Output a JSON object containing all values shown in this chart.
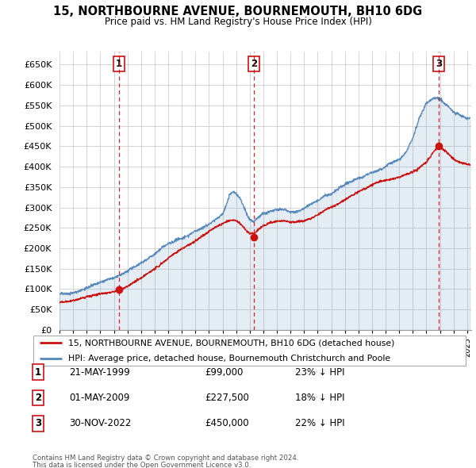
{
  "title": "15, NORTHBOURNE AVENUE, BOURNEMOUTH, BH10 6DG",
  "subtitle": "Price paid vs. HM Land Registry's House Price Index (HPI)",
  "ylim": [
    0,
    682000
  ],
  "yticks": [
    0,
    50000,
    100000,
    150000,
    200000,
    250000,
    300000,
    350000,
    400000,
    450000,
    500000,
    550000,
    600000,
    650000
  ],
  "xlim_start": 1995.0,
  "xlim_end": 2025.3,
  "transactions": [
    {
      "num": 1,
      "year": 1999.38,
      "price": 99000
    },
    {
      "num": 2,
      "year": 2009.33,
      "price": 227500
    },
    {
      "num": 3,
      "year": 2022.92,
      "price": 450000
    }
  ],
  "hpi_color": "#5588bb",
  "hpi_fill_alpha": 0.15,
  "price_color": "#cc1111",
  "dashed_color": "#cc1111",
  "legend_label_price": "15, NORTHBOURNE AVENUE, BOURNEMOUTH, BH10 6DG (detached house)",
  "legend_label_hpi": "HPI: Average price, detached house, Bournemouth Christchurch and Poole",
  "footer1": "Contains HM Land Registry data © Crown copyright and database right 2024.",
  "footer2": "This data is licensed under the Open Government Licence v3.0.",
  "table_rows": [
    {
      "num": 1,
      "date": "21-MAY-1999",
      "price": "£99,000",
      "pct": "23% ↓ HPI"
    },
    {
      "num": 2,
      "date": "01-MAY-2009",
      "price": "£227,500",
      "pct": "18% ↓ HPI"
    },
    {
      "num": 3,
      "date": "30-NOV-2022",
      "price": "£450,000",
      "pct": "22% ↓ HPI"
    }
  ],
  "hpi_anchors_x": [
    1995,
    1995.5,
    1996,
    1996.5,
    1997,
    1997.5,
    1998,
    1998.5,
    1999,
    1999.5,
    2000,
    2000.5,
    2001,
    2001.5,
    2002,
    2002.5,
    2003,
    2003.5,
    2004,
    2004.5,
    2005,
    2005.5,
    2006,
    2006.5,
    2007,
    2007.2,
    2007.5,
    2007.8,
    2008,
    2008.3,
    2008.5,
    2008.8,
    2009,
    2009.3,
    2009.5,
    2009.8,
    2010,
    2010.5,
    2011,
    2011.5,
    2012,
    2012.5,
    2013,
    2013.5,
    2014,
    2014.5,
    2015,
    2015.5,
    2016,
    2016.5,
    2017,
    2017.5,
    2018,
    2018.3,
    2018.5,
    2018.8,
    2019,
    2019.5,
    2020,
    2020.5,
    2021,
    2021.5,
    2022,
    2022.5,
    2022.8,
    2023,
    2023.5,
    2024,
    2024.5,
    2025
  ],
  "hpi_anchors_y": [
    88000,
    90000,
    95000,
    100000,
    108000,
    115000,
    122000,
    128000,
    132000,
    138000,
    148000,
    160000,
    170000,
    178000,
    190000,
    205000,
    215000,
    222000,
    228000,
    238000,
    248000,
    258000,
    270000,
    282000,
    295000,
    310000,
    340000,
    348000,
    345000,
    332000,
    318000,
    295000,
    282000,
    278000,
    285000,
    295000,
    300000,
    305000,
    308000,
    308000,
    302000,
    302000,
    308000,
    315000,
    325000,
    335000,
    342000,
    352000,
    362000,
    370000,
    378000,
    382000,
    388000,
    392000,
    395000,
    398000,
    405000,
    415000,
    420000,
    440000,
    475000,
    525000,
    560000,
    575000,
    578000,
    572000,
    555000,
    538000,
    528000,
    520000
  ],
  "price_anchors_x": [
    1995,
    1995.5,
    1996,
    1996.5,
    1997,
    1997.5,
    1998,
    1998.5,
    1999,
    1999.38,
    1999.5,
    2000,
    2000.5,
    2001,
    2001.5,
    2002,
    2002.3,
    2002.5,
    2002.8,
    2003,
    2003.5,
    2004,
    2004.5,
    2005,
    2005.3,
    2005.5,
    2005.8,
    2006,
    2006.5,
    2007,
    2007.3,
    2007.5,
    2007.8,
    2008,
    2008.3,
    2008.5,
    2008.8,
    2009,
    2009.33,
    2009.5,
    2010,
    2010.3,
    2010.5,
    2010.8,
    2011,
    2011.3,
    2011.5,
    2011.8,
    2012,
    2012.5,
    2013,
    2013.5,
    2014,
    2014.5,
    2015,
    2015.5,
    2016,
    2016.5,
    2017,
    2017.5,
    2018,
    2018.3,
    2018.5,
    2019,
    2019.5,
    2020,
    2020.5,
    2021,
    2021.3,
    2021.5,
    2022,
    2022.5,
    2022.92,
    2023,
    2023.5,
    2024,
    2024.5,
    2025
  ],
  "price_anchors_y": [
    68000,
    70000,
    74000,
    78000,
    82000,
    86000,
    90000,
    94000,
    97000,
    99000,
    101000,
    108000,
    118000,
    128000,
    138000,
    148000,
    155000,
    162000,
    168000,
    175000,
    185000,
    195000,
    205000,
    215000,
    222000,
    228000,
    232000,
    238000,
    248000,
    255000,
    260000,
    262000,
    264000,
    262000,
    255000,
    248000,
    235000,
    228000,
    227500,
    232000,
    248000,
    252000,
    255000,
    258000,
    260000,
    262000,
    264000,
    262000,
    260000,
    262000,
    265000,
    270000,
    278000,
    288000,
    295000,
    305000,
    315000,
    325000,
    335000,
    342000,
    350000,
    355000,
    358000,
    362000,
    368000,
    372000,
    378000,
    385000,
    390000,
    398000,
    410000,
    435000,
    450000,
    448000,
    435000,
    420000,
    410000,
    405000
  ]
}
